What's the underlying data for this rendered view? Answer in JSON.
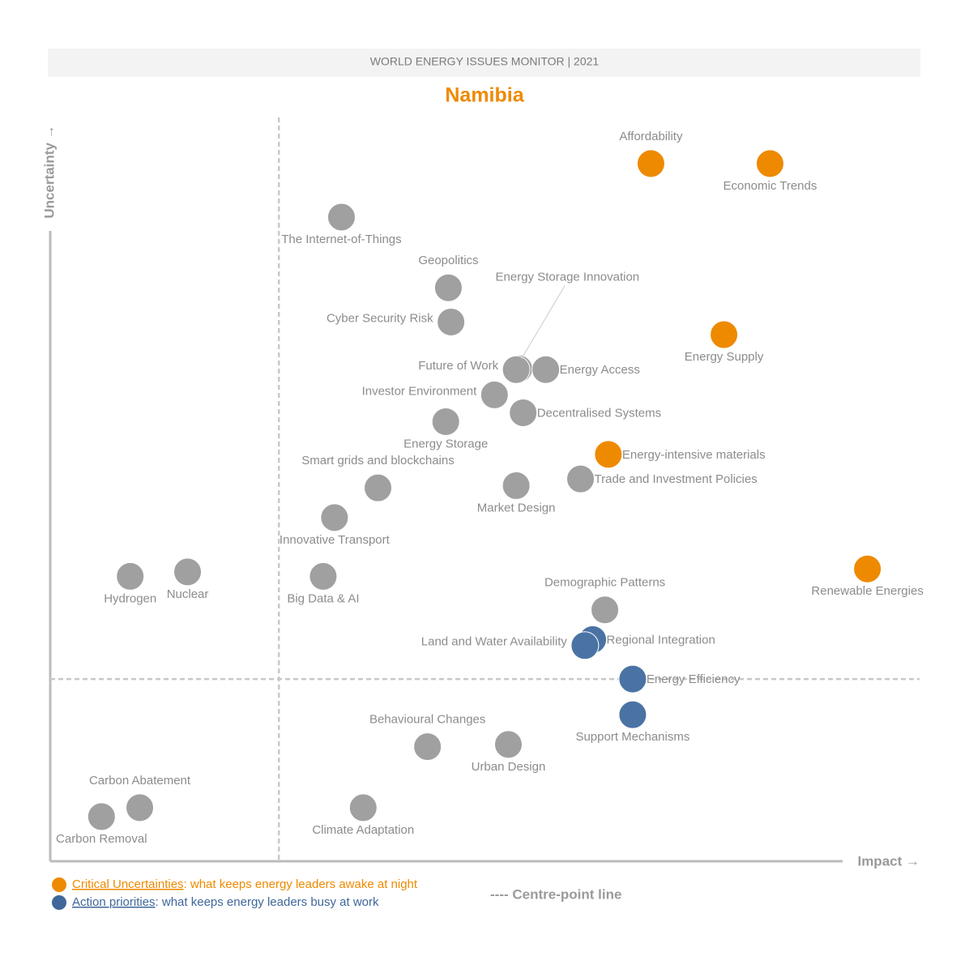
{
  "chart_data": {
    "type": "scatter",
    "header": "WORLD ENERGY ISSUES MONITOR | 2021",
    "title": "Namibia",
    "y_label": "Uncertainty →",
    "x_label": "Impact →",
    "centre_label": "---- Centre-point line",
    "xlim": [
      0,
      100
    ],
    "ylim": [
      0,
      100
    ],
    "centre": {
      "x": 26.3,
      "y": 24.5
    },
    "legend": [
      {
        "name": "Critical Uncertainties",
        "text": ": what keeps energy leaders awake at night",
        "color": "#ee8a00"
      },
      {
        "name": "Action priorities",
        "text": ": what keeps energy leaders busy at work",
        "color": "#3f679a"
      }
    ],
    "points": [
      {
        "label": "Affordability",
        "x": 69.1,
        "y": 93.8,
        "color": "#ee8a00"
      },
      {
        "label": "Economic Trends",
        "x": 82.8,
        "y": 93.8,
        "color": "#ee8a00"
      },
      {
        "label": "The Internet-of-Things",
        "x": 33.5,
        "y": 86.6,
        "color": "#a0a0a0"
      },
      {
        "label": "Geopolitics",
        "x": 45.8,
        "y": 77.1,
        "color": "#a0a0a0"
      },
      {
        "label": "Cyber Security Risk",
        "x": 46.1,
        "y": 72.5,
        "color": "#a0a0a0"
      },
      {
        "label": "Energy Supply",
        "x": 77.5,
        "y": 70.8,
        "color": "#ee8a00"
      },
      {
        "label": "Energy Storage Innovation",
        "x": 53.9,
        "y": 66.2,
        "color": "#a0a0a0"
      },
      {
        "label": "Future of Work",
        "x": 53.6,
        "y": 66.1,
        "color": "#a0a0a0"
      },
      {
        "label": "Energy Access",
        "x": 57.0,
        "y": 66.1,
        "color": "#a0a0a0"
      },
      {
        "label": "Investor Environment",
        "x": 51.1,
        "y": 62.7,
        "color": "#a0a0a0"
      },
      {
        "label": "Decentralised Systems",
        "x": 54.4,
        "y": 60.3,
        "color": "#a0a0a0"
      },
      {
        "label": "Energy Storage",
        "x": 45.5,
        "y": 59.1,
        "color": "#a0a0a0"
      },
      {
        "label": "Energy-intensive materials",
        "x": 64.2,
        "y": 54.7,
        "color": "#ee8a00"
      },
      {
        "label": "Trade and Investment Policies",
        "x": 61.0,
        "y": 51.4,
        "color": "#a0a0a0"
      },
      {
        "label": "Smart grids and blockchains",
        "x": 37.7,
        "y": 50.2,
        "color": "#a0a0a0"
      },
      {
        "label": "Market Design",
        "x": 53.6,
        "y": 50.5,
        "color": "#a0a0a0"
      },
      {
        "label": "Innovative Transport",
        "x": 32.7,
        "y": 46.2,
        "color": "#a0a0a0"
      },
      {
        "label": "Hydrogen",
        "x": 9.2,
        "y": 38.3,
        "color": "#a0a0a0"
      },
      {
        "label": "Nuclear",
        "x": 15.8,
        "y": 38.9,
        "color": "#a0a0a0"
      },
      {
        "label": "Big Data & AI",
        "x": 31.4,
        "y": 38.3,
        "color": "#a0a0a0"
      },
      {
        "label": "Renewable Energies",
        "x": 94.0,
        "y": 39.3,
        "color": "#ee8a00"
      },
      {
        "label": "Demographic Patterns",
        "x": 63.8,
        "y": 33.8,
        "color": "#a0a0a0"
      },
      {
        "label": "Regional Integration",
        "x": 62.4,
        "y": 29.8,
        "color": "#4a73a4"
      },
      {
        "label": "Land and Water Availability",
        "x": 61.5,
        "y": 29.0,
        "color": "#4a73a4"
      },
      {
        "label": "Energy Efficiency",
        "x": 67.0,
        "y": 24.5,
        "color": "#4a73a4"
      },
      {
        "label": "Support Mechanisms",
        "x": 67.0,
        "y": 19.7,
        "color": "#4a73a4"
      },
      {
        "label": "Behavioural Changes",
        "x": 43.4,
        "y": 15.4,
        "color": "#a0a0a0"
      },
      {
        "label": "Urban Design",
        "x": 52.7,
        "y": 15.7,
        "color": "#a0a0a0"
      },
      {
        "label": "Carbon Abatement",
        "x": 10.3,
        "y": 7.2,
        "color": "#a0a0a0"
      },
      {
        "label": "Carbon Removal",
        "x": 5.9,
        "y": 6.0,
        "color": "#a0a0a0"
      },
      {
        "label": "Climate Adaptation",
        "x": 36.0,
        "y": 7.2,
        "color": "#a0a0a0"
      }
    ]
  }
}
